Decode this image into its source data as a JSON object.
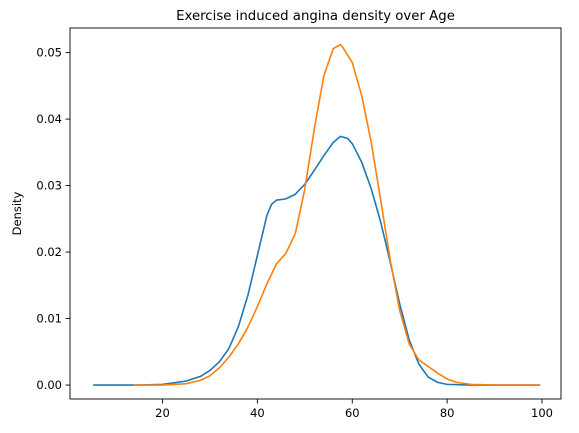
{
  "chart_data": {
    "type": "line",
    "title": "Exercise induced angina density over Age",
    "xlabel": "",
    "ylabel": "Density",
    "xlim": [
      0.5,
      104
    ],
    "ylim": [
      -0.0021,
      0.0537
    ],
    "xticks": [
      20,
      40,
      60,
      80,
      100
    ],
    "yticks": [
      0.0,
      0.01,
      0.02,
      0.03,
      0.04,
      0.05
    ],
    "ytick_labels": [
      "0.00",
      "0.01",
      "0.02",
      "0.03",
      "0.04",
      "0.05"
    ],
    "grid": false,
    "legend": "none",
    "series": [
      {
        "color": "#1f77b4",
        "x": [
          5.5,
          15,
          20,
          25,
          28,
          30,
          32,
          34,
          36,
          38,
          40,
          42,
          43,
          44,
          46,
          48,
          50,
          52,
          54,
          56,
          57.5,
          59,
          60,
          62,
          64,
          66,
          68,
          70,
          72,
          74,
          76,
          78,
          80,
          85,
          90,
          99.5
        ],
        "y": [
          0.0,
          0.0,
          0.0001,
          0.0006,
          0.0013,
          0.0022,
          0.0035,
          0.0055,
          0.0088,
          0.0135,
          0.0195,
          0.0255,
          0.0272,
          0.0278,
          0.028,
          0.0287,
          0.0302,
          0.0323,
          0.0345,
          0.0365,
          0.0374,
          0.0371,
          0.0363,
          0.0335,
          0.0295,
          0.0245,
          0.0185,
          0.0122,
          0.0068,
          0.0032,
          0.0012,
          0.0004,
          0.0001,
          0.0,
          0.0,
          0.0
        ]
      },
      {
        "color": "#ff7f0e",
        "x": [
          14,
          20,
          25,
          28,
          30,
          32,
          34,
          36,
          38,
          40,
          42,
          44,
          46,
          48,
          50,
          52,
          54,
          56,
          57.5,
          58,
          60,
          62,
          64,
          66,
          68,
          70,
          72,
          74,
          76,
          78,
          80,
          82,
          85,
          90,
          99.5
        ],
        "y": [
          0.0,
          0.0,
          0.0002,
          0.0007,
          0.0014,
          0.0026,
          0.0042,
          0.0062,
          0.0087,
          0.0118,
          0.0152,
          0.0182,
          0.0198,
          0.0228,
          0.0295,
          0.0385,
          0.0465,
          0.0506,
          0.0512,
          0.0508,
          0.0485,
          0.0435,
          0.0365,
          0.0278,
          0.0188,
          0.0112,
          0.0062,
          0.0038,
          0.0028,
          0.0018,
          0.0009,
          0.0004,
          0.0001,
          0.0,
          0.0
        ]
      }
    ]
  }
}
